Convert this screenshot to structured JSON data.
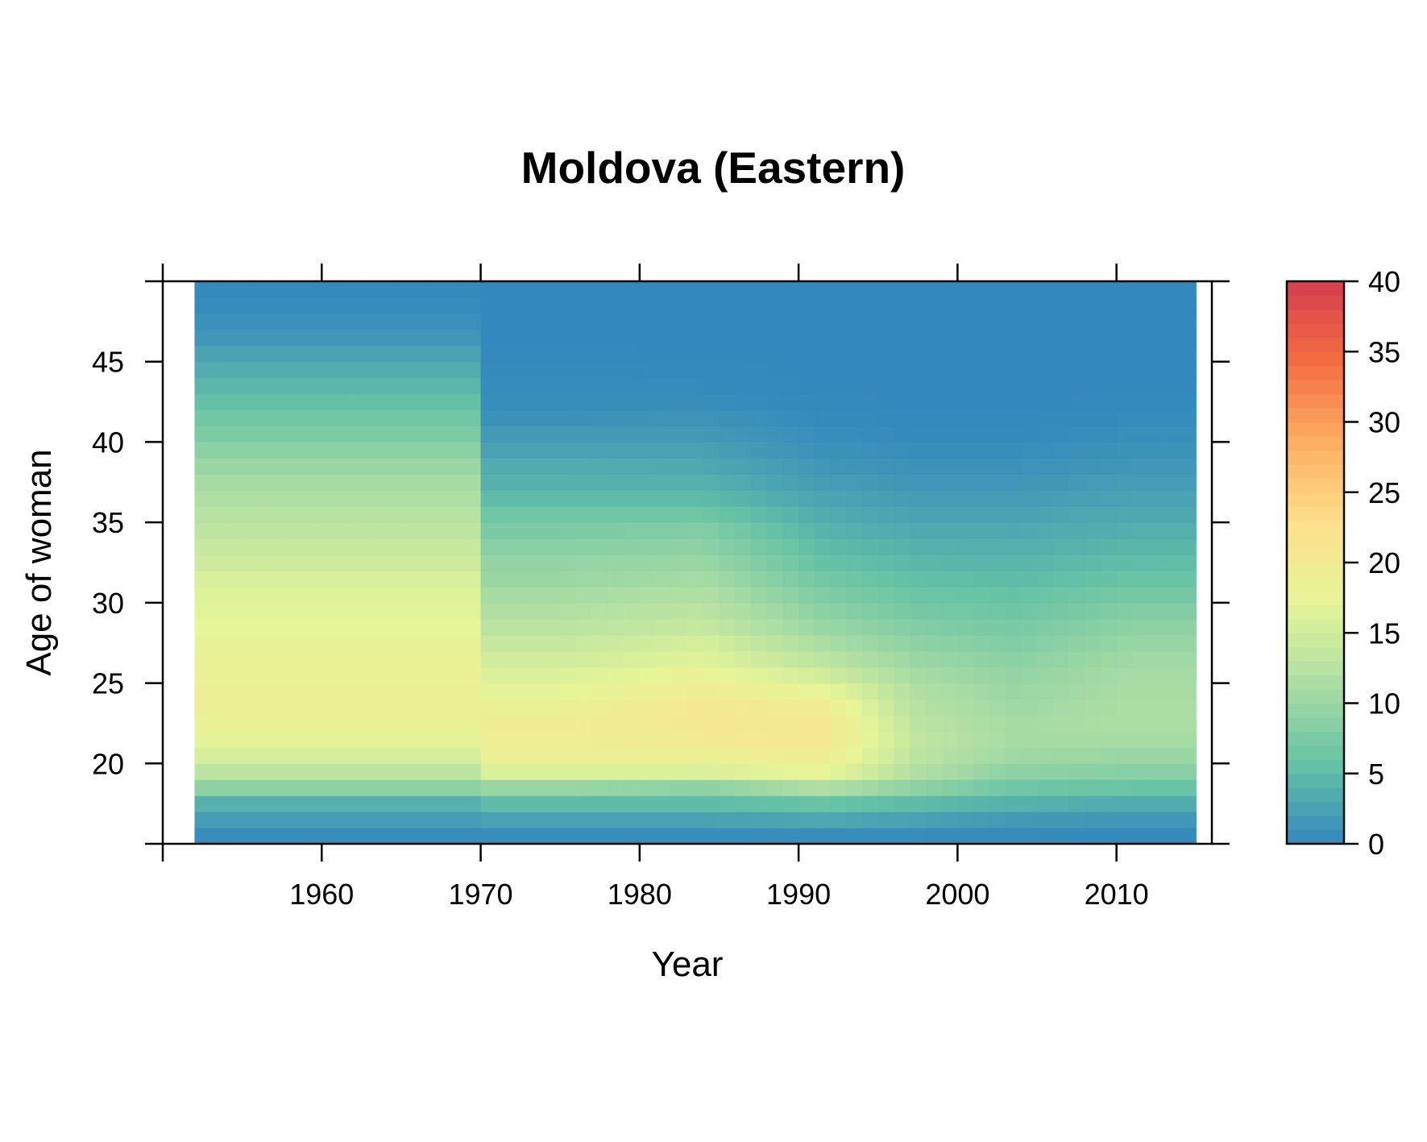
{
  "chart_data": {
    "type": "heatmap",
    "title": "Moldova (Eastern)",
    "xlabel": "Year",
    "ylabel": "Age of woman",
    "x_range": [
      1952,
      2015
    ],
    "y_range": [
      15,
      50
    ],
    "x_ticks": [
      "1960",
      "1970",
      "1980",
      "1990",
      "2000",
      "2010"
    ],
    "y_ticks": [
      "20",
      "25",
      "30",
      "35",
      "40",
      "45"
    ],
    "colorbar": {
      "range": [
        0,
        40
      ],
      "ticks": [
        "0",
        "5",
        "10",
        "15",
        "20",
        "25",
        "30",
        "35",
        "40"
      ],
      "palette": [
        "#3288bd",
        "#66c2a5",
        "#abdda4",
        "#e6f598",
        "#fee08b",
        "#fdae61",
        "#f46d43",
        "#d53e4f"
      ]
    },
    "periods": [
      {
        "years": [
          1952,
          1970
        ],
        "profile": [
          [
            15,
            0.5
          ],
          [
            16,
            2
          ],
          [
            17,
            4
          ],
          [
            18,
            9
          ],
          [
            19,
            13
          ],
          [
            20,
            15.5
          ],
          [
            21,
            17
          ],
          [
            22,
            18
          ],
          [
            23,
            18.5
          ],
          [
            24,
            18.5
          ],
          [
            25,
            18.3
          ],
          [
            26,
            18
          ],
          [
            27,
            17.6
          ],
          [
            28,
            17.2
          ],
          [
            29,
            16.8
          ],
          [
            30,
            16.4
          ],
          [
            31,
            15.8
          ],
          [
            32,
            14.8
          ],
          [
            33,
            14
          ],
          [
            34,
            13.3
          ],
          [
            35,
            12.6
          ],
          [
            36,
            11.8
          ],
          [
            37,
            11
          ],
          [
            38,
            10
          ],
          [
            39,
            8.8
          ],
          [
            40,
            7.6
          ],
          [
            41,
            6.6
          ],
          [
            42,
            5.6
          ],
          [
            43,
            4.6
          ],
          [
            44,
            3.6
          ],
          [
            45,
            2.6
          ],
          [
            46,
            1.6
          ],
          [
            47,
            0.8
          ],
          [
            48,
            0.4
          ],
          [
            49,
            0.2
          ]
        ]
      },
      {
        "years": [
          1970,
          1980
        ],
        "profile": [
          [
            15,
            0.5
          ],
          [
            16,
            2.5
          ],
          [
            17,
            5
          ],
          [
            18,
            10
          ],
          [
            19,
            16
          ],
          [
            20,
            18.5
          ],
          [
            21,
            19
          ],
          [
            22,
            19.2
          ],
          [
            23,
            18.5
          ],
          [
            24,
            17
          ],
          [
            25,
            16
          ],
          [
            26,
            15
          ],
          [
            27,
            14
          ],
          [
            28,
            13
          ],
          [
            29,
            12
          ],
          [
            30,
            11
          ],
          [
            31,
            10
          ],
          [
            32,
            9.5
          ],
          [
            33,
            8.5
          ],
          [
            34,
            7.5
          ],
          [
            35,
            6.5
          ],
          [
            36,
            5
          ],
          [
            37,
            4
          ],
          [
            38,
            3.5
          ],
          [
            39,
            2.5
          ],
          [
            40,
            1.8
          ],
          [
            41,
            1
          ],
          [
            42,
            0.6
          ],
          [
            43,
            0.4
          ],
          [
            44,
            0.3
          ],
          [
            45,
            0.2
          ],
          [
            46,
            0.1
          ],
          [
            47,
            0.1
          ],
          [
            48,
            0.1
          ],
          [
            49,
            0.1
          ]
        ]
      },
      {
        "years": [
          1980,
          1988
        ],
        "profile": [
          [
            15,
            0.5
          ],
          [
            16,
            2.5
          ],
          [
            17,
            5
          ],
          [
            18,
            9
          ],
          [
            19,
            16
          ],
          [
            20,
            18.5
          ],
          [
            21,
            20
          ],
          [
            22,
            20.5
          ],
          [
            23,
            20.5
          ],
          [
            24,
            19.5
          ],
          [
            25,
            18
          ],
          [
            26,
            16.5
          ],
          [
            27,
            15.5
          ],
          [
            28,
            14
          ],
          [
            29,
            13
          ],
          [
            30,
            12
          ],
          [
            31,
            11
          ],
          [
            32,
            10
          ],
          [
            33,
            9
          ],
          [
            34,
            8
          ],
          [
            35,
            6.5
          ],
          [
            36,
            5
          ],
          [
            37,
            4
          ],
          [
            38,
            3.2
          ],
          [
            39,
            2.5
          ],
          [
            40,
            1.8
          ],
          [
            41,
            1.2
          ],
          [
            42,
            0.6
          ],
          [
            43,
            0.4
          ],
          [
            44,
            0.2
          ],
          [
            45,
            0.1
          ],
          [
            46,
            0.1
          ],
          [
            47,
            0.1
          ],
          [
            48,
            0.1
          ],
          [
            49,
            0.1
          ]
        ]
      },
      {
        "years": [
          1988,
          1995
        ],
        "profile": [
          [
            15,
            0.6
          ],
          [
            16,
            3
          ],
          [
            17,
            6
          ],
          [
            18,
            12
          ],
          [
            19,
            17.5
          ],
          [
            20,
            19.5
          ],
          [
            21,
            20.5
          ],
          [
            22,
            20.5
          ],
          [
            23,
            19.5
          ],
          [
            24,
            17.5
          ],
          [
            25,
            15
          ],
          [
            26,
            13
          ],
          [
            27,
            11.5
          ],
          [
            28,
            10
          ],
          [
            29,
            8.8
          ],
          [
            30,
            7.8
          ],
          [
            31,
            6.8
          ],
          [
            32,
            5.8
          ],
          [
            33,
            5
          ],
          [
            34,
            4.2
          ],
          [
            35,
            3.5
          ],
          [
            36,
            2.8
          ],
          [
            37,
            2
          ],
          [
            38,
            1.5
          ],
          [
            39,
            1
          ],
          [
            40,
            0.6
          ],
          [
            41,
            0.3
          ],
          [
            42,
            0.2
          ],
          [
            43,
            0.1
          ],
          [
            44,
            0.1
          ],
          [
            45,
            0.1
          ],
          [
            46,
            0.1
          ],
          [
            47,
            0.1
          ],
          [
            48,
            0.1
          ],
          [
            49,
            0.1
          ]
        ]
      },
      {
        "years": [
          1995,
          2000
        ],
        "profile": [
          [
            15,
            0.5
          ],
          [
            16,
            2.5
          ],
          [
            17,
            5
          ],
          [
            18,
            9
          ],
          [
            19,
            12
          ],
          [
            20,
            13
          ],
          [
            21,
            13.5
          ],
          [
            22,
            13
          ],
          [
            23,
            12.5
          ],
          [
            24,
            12
          ],
          [
            25,
            11
          ],
          [
            26,
            10
          ],
          [
            27,
            9
          ],
          [
            28,
            8
          ],
          [
            29,
            7
          ],
          [
            30,
            6.2
          ],
          [
            31,
            5.4
          ],
          [
            32,
            4.6
          ],
          [
            33,
            4
          ],
          [
            34,
            3.3
          ],
          [
            35,
            2.6
          ],
          [
            36,
            2
          ],
          [
            37,
            1.5
          ],
          [
            38,
            1
          ],
          [
            39,
            0.6
          ],
          [
            40,
            0.3
          ],
          [
            41,
            0.2
          ],
          [
            42,
            0.1
          ],
          [
            43,
            0.1
          ],
          [
            44,
            0.1
          ],
          [
            45,
            0.1
          ],
          [
            46,
            0.1
          ],
          [
            47,
            0.1
          ],
          [
            48,
            0.1
          ],
          [
            49,
            0.1
          ]
        ]
      },
      {
        "years": [
          2000,
          2007
        ],
        "profile": [
          [
            15,
            0.4
          ],
          [
            16,
            1.8
          ],
          [
            17,
            4
          ],
          [
            18,
            6.5
          ],
          [
            19,
            9
          ],
          [
            20,
            10.5
          ],
          [
            21,
            11
          ],
          [
            22,
            11
          ],
          [
            23,
            10.5
          ],
          [
            24,
            10
          ],
          [
            25,
            9.5
          ],
          [
            26,
            8.8
          ],
          [
            27,
            8
          ],
          [
            28,
            7.2
          ],
          [
            29,
            6.4
          ],
          [
            30,
            5.8
          ],
          [
            31,
            5
          ],
          [
            32,
            4.4
          ],
          [
            33,
            3.8
          ],
          [
            34,
            3.2
          ],
          [
            35,
            2.6
          ],
          [
            36,
            2
          ],
          [
            37,
            1.5
          ],
          [
            38,
            1
          ],
          [
            39,
            0.6
          ],
          [
            40,
            0.3
          ],
          [
            41,
            0.2
          ],
          [
            42,
            0.1
          ],
          [
            43,
            0.1
          ],
          [
            44,
            0.1
          ],
          [
            45,
            0.1
          ],
          [
            46,
            0.1
          ],
          [
            47,
            0.1
          ],
          [
            48,
            0.1
          ],
          [
            49,
            0.1
          ]
        ]
      },
      {
        "years": [
          2007,
          2015
        ],
        "profile": [
          [
            15,
            0.3
          ],
          [
            16,
            1.5
          ],
          [
            17,
            3.5
          ],
          [
            18,
            6
          ],
          [
            19,
            8.5
          ],
          [
            20,
            10
          ],
          [
            21,
            11
          ],
          [
            22,
            11.5
          ],
          [
            23,
            11.5
          ],
          [
            24,
            11.3
          ],
          [
            25,
            11
          ],
          [
            26,
            10.5
          ],
          [
            27,
            9.8
          ],
          [
            28,
            9
          ],
          [
            29,
            8
          ],
          [
            30,
            7
          ],
          [
            31,
            6
          ],
          [
            32,
            5.2
          ],
          [
            33,
            4.5
          ],
          [
            34,
            3.8
          ],
          [
            35,
            3.2
          ],
          [
            36,
            2.6
          ],
          [
            37,
            2
          ],
          [
            38,
            1.5
          ],
          [
            39,
            1.1
          ],
          [
            40,
            0.7
          ],
          [
            41,
            0.4
          ],
          [
            42,
            0.2
          ],
          [
            43,
            0.1
          ],
          [
            44,
            0.1
          ],
          [
            45,
            0.1
          ],
          [
            46,
            0.1
          ],
          [
            47,
            0.1
          ],
          [
            48,
            0.1
          ],
          [
            49,
            0.1
          ]
        ]
      }
    ]
  }
}
